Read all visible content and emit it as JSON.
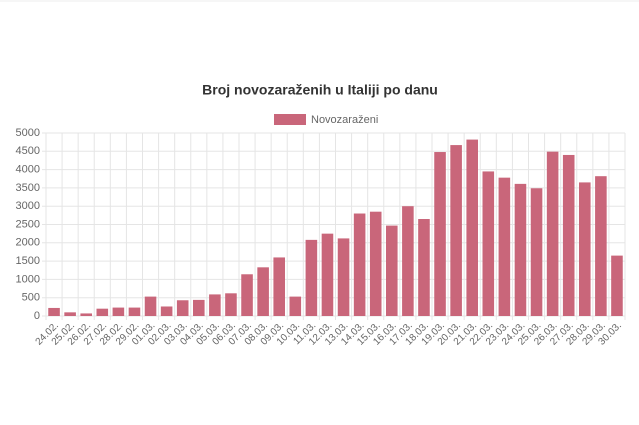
{
  "chart_data": {
    "type": "bar",
    "title": "Broj novozaraženih u Italiji po danu",
    "categories": [
      "24.02.",
      "25.02.",
      "26.02.",
      "27.02.",
      "28.02.",
      "29.02.",
      "01.03.",
      "02.03.",
      "03.03.",
      "04.03.",
      "05.03.",
      "06.03.",
      "07.03.",
      "08.03.",
      "09.03.",
      "10.03.",
      "11.03.",
      "12.03.",
      "13.03.",
      "14.03.",
      "15.03.",
      "16.03.",
      "17.03.",
      "18.03.",
      "19.03.",
      "20.03.",
      "21.03.",
      "22.03.",
      "23.03.",
      "24.03.",
      "25.03.",
      "26.03.",
      "27.03.",
      "28.03.",
      "29.03.",
      "30.03."
    ],
    "series": [
      {
        "name": "Novozaraženi",
        "color": "#c9667a",
        "values": [
          220,
          100,
          70,
          200,
          230,
          230,
          530,
          260,
          430,
          440,
          590,
          620,
          1140,
          1330,
          1600,
          530,
          2080,
          2250,
          2120,
          2800,
          2850,
          2470,
          3000,
          2650,
          4480,
          4670,
          4820,
          3950,
          3780,
          3610,
          3490,
          4490,
          4400,
          3650,
          3820,
          1650
        ]
      }
    ],
    "ylim": [
      0,
      5000
    ],
    "yticks": [
      0,
      500,
      1000,
      1500,
      2000,
      2500,
      3000,
      3500,
      4000,
      4500,
      5000
    ],
    "grid": true,
    "legend": "top"
  }
}
